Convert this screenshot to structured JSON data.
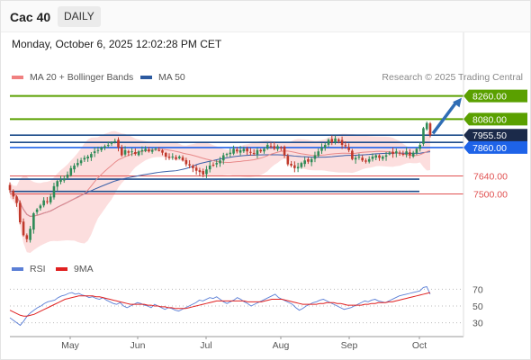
{
  "header": {
    "title": "Cac 40",
    "timeframe": "DAILY"
  },
  "date_line": "Monday, October 6, 2025 12:02:28 PM CET",
  "legend_main": [
    {
      "label": "MA 20 + Bollinger Bands",
      "color": "#f08080"
    },
    {
      "label": "MA 50",
      "color": "#2c5aa0"
    }
  ],
  "credit": "Research © 2025 Trading Central",
  "legend_rsi": [
    {
      "label": "RSI",
      "color": "#5b7fd6"
    },
    {
      "label": "9MA",
      "color": "#e02020"
    }
  ],
  "colors": {
    "resistance": "#5aa000",
    "pivot": "#1e63e8",
    "support": "#e05050",
    "level_dark": "#1f4e8c",
    "up": "#2e8b57",
    "down": "#c0392b",
    "arrow": "#2f6db5"
  },
  "chart_data": [
    {
      "type": "candlestick",
      "title": "Cac 40",
      "y_range": [
        7050,
        8320
      ],
      "x_months": [
        "May",
        "Jun",
        "Jul",
        "Aug",
        "Sep",
        "Oct"
      ],
      "levels": [
        {
          "value": 8260.0,
          "label": "8260.00",
          "kind": "resistance"
        },
        {
          "value": 8080.0,
          "label": "8080.00",
          "kind": "resistance"
        },
        {
          "value": 7955.5,
          "label": "7955.50",
          "kind": "last"
        },
        {
          "value": 7860.0,
          "label": "7860.00",
          "kind": "pivot"
        },
        {
          "value": 7640.0,
          "label": "7640.00",
          "kind": "support"
        },
        {
          "value": 7500.0,
          "label": "7500.00",
          "kind": "support"
        }
      ],
      "closes": [
        7530,
        7480,
        7430,
        7280,
        7180,
        7150,
        7230,
        7350,
        7380,
        7410,
        7450,
        7440,
        7480,
        7560,
        7600,
        7610,
        7620,
        7650,
        7700,
        7720,
        7740,
        7760,
        7780,
        7790,
        7810,
        7830,
        7840,
        7860,
        7870,
        7880,
        7900,
        7910,
        7860,
        7800,
        7840,
        7820,
        7830,
        7810,
        7830,
        7840,
        7850,
        7830,
        7840,
        7850,
        7840,
        7820,
        7790,
        7780,
        7790,
        7770,
        7790,
        7760,
        7730,
        7720,
        7700,
        7680,
        7670,
        7650,
        7690,
        7720,
        7720,
        7740,
        7760,
        7800,
        7810,
        7820,
        7850,
        7830,
        7840,
        7850,
        7830,
        7820,
        7810,
        7840,
        7830,
        7850,
        7880,
        7870,
        7850,
        7870,
        7860,
        7800,
        7730,
        7720,
        7700,
        7710,
        7740,
        7760,
        7750,
        7770,
        7800,
        7830,
        7860,
        7880,
        7920,
        7900,
        7930,
        7910,
        7880,
        7870,
        7840,
        7770,
        7780,
        7790,
        7760,
        7750,
        7770,
        7790,
        7800,
        7780,
        7790,
        7800,
        7820,
        7810,
        7830,
        7820,
        7810,
        7830,
        7800,
        7820,
        7850,
        7880,
        8010,
        8050,
        7955
      ]
    },
    {
      "type": "line",
      "title": "RSI",
      "ylim": [
        20,
        80
      ],
      "yticks": [
        70,
        50,
        30
      ],
      "series": [
        {
          "name": "RSI",
          "values": [
            36,
            33,
            30,
            27,
            32,
            38,
            42,
            45,
            48,
            50,
            53,
            55,
            56,
            57,
            60,
            62,
            63,
            65,
            66,
            64,
            65,
            63,
            62,
            60,
            61,
            59,
            58,
            60,
            57,
            55,
            53,
            52,
            54,
            50,
            48,
            50,
            52,
            54,
            53,
            51,
            50,
            48,
            52,
            50,
            48,
            46,
            48,
            47,
            45,
            44,
            46,
            48,
            50,
            52,
            54,
            57,
            56,
            58,
            60,
            59,
            61,
            58,
            55,
            53,
            55,
            57,
            60,
            58,
            55,
            53,
            50,
            52,
            54,
            56,
            58,
            60,
            62,
            64,
            60,
            58,
            56,
            54,
            52,
            48,
            45,
            47,
            50,
            52,
            54,
            55,
            57,
            58,
            56,
            54,
            52,
            50,
            48,
            46,
            47,
            48,
            50,
            52,
            54,
            56,
            55,
            57,
            58,
            56,
            55,
            54,
            56,
            58,
            60,
            62,
            63,
            64,
            65,
            66,
            67,
            68,
            72,
            73,
            64
          ]
        },
        {
          "name": "9MA",
          "values": [
            45,
            43,
            41,
            39,
            38,
            38,
            39,
            40,
            42,
            44,
            46,
            48,
            50,
            52,
            54,
            56,
            58,
            59,
            60,
            61,
            62,
            62,
            62,
            62,
            62,
            61,
            61,
            60,
            59,
            58,
            57,
            56,
            55,
            54,
            53,
            52,
            52,
            52,
            52,
            52,
            51,
            51,
            50,
            50,
            49,
            49,
            48,
            48,
            47,
            47,
            47,
            47,
            48,
            49,
            50,
            51,
            52,
            53,
            54,
            55,
            56,
            56,
            56,
            56,
            56,
            56,
            56,
            56,
            56,
            55,
            55,
            55,
            55,
            55,
            56,
            57,
            58,
            58,
            58,
            58,
            57,
            56,
            55,
            54,
            53,
            52,
            52,
            52,
            52,
            52,
            53,
            53,
            54,
            54,
            54,
            53,
            53,
            52,
            51,
            51,
            51,
            51,
            51,
            52,
            52,
            53,
            53,
            54,
            54,
            54,
            55,
            55,
            56,
            57,
            58,
            59,
            60,
            61,
            62,
            63,
            64,
            65,
            66
          ]
        }
      ]
    }
  ]
}
